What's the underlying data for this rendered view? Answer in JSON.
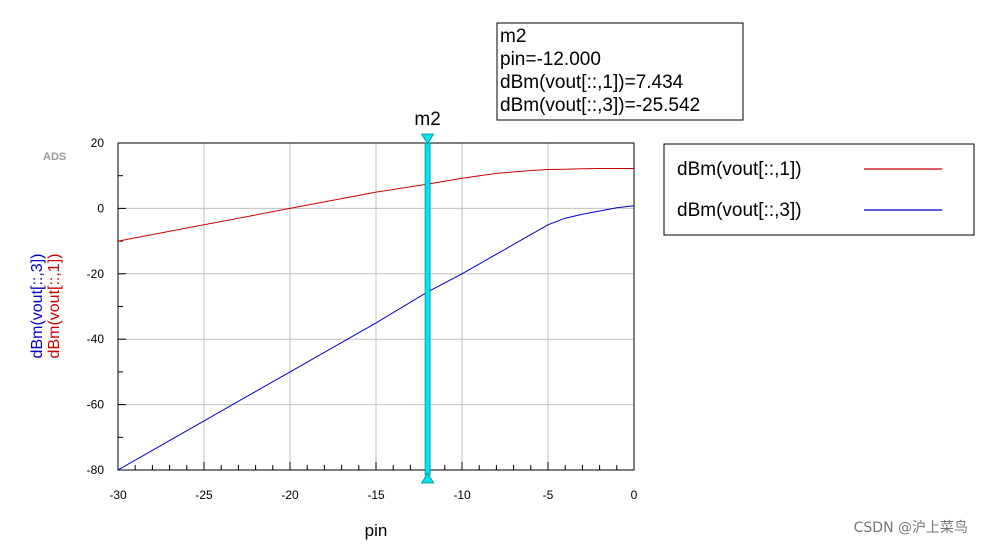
{
  "ads_logo": "ADS",
  "watermark": "CSDN @沪上菜鸟",
  "marker": {
    "name": "m2",
    "lines": [
      "m2",
      "pin=-12.000",
      "dBm(vout[::,1])=7.434",
      "dBm(vout[::,3])=-25.542"
    ],
    "x": -12.0,
    "color": "#00e5ee"
  },
  "legend": {
    "placement": "right",
    "entries": [
      {
        "label": "dBm(vout[::,1])",
        "color": "#cc0000"
      },
      {
        "label": "dBm(vout[::,3])",
        "color": "#0000cc"
      }
    ]
  },
  "chart_data": {
    "type": "line",
    "xlabel": "pin",
    "ylabel_parts": [
      {
        "text": "dBm(vout[::,3])",
        "color": "#0000cc"
      },
      {
        "text": "dBm(vout[::,1])",
        "color": "#cc0000"
      }
    ],
    "xlim": [
      -30,
      0
    ],
    "ylim": [
      -80,
      20
    ],
    "xticks": [
      -30,
      -25,
      -20,
      -15,
      -10,
      -5,
      0
    ],
    "yticks": [
      20,
      0,
      -20,
      -40,
      -60,
      -80
    ],
    "grid": true,
    "series": [
      {
        "name": "dBm(vout[::,1])",
        "color": "#cc0000",
        "x": [
          -30,
          -25,
          -20,
          -15,
          -12,
          -10,
          -8,
          -6,
          -5,
          -4,
          -3,
          -2,
          -1,
          0
        ],
        "y": [
          -10,
          -5,
          0,
          5,
          7.434,
          9.2,
          10.7,
          11.6,
          11.9,
          12.0,
          12.1,
          12.2,
          12.2,
          12.2
        ]
      },
      {
        "name": "dBm(vout[::,3])",
        "color": "#0000cc",
        "x": [
          -30,
          -25,
          -20,
          -15,
          -12,
          -10,
          -8,
          -6,
          -5,
          -4,
          -3,
          -2,
          -1,
          0
        ],
        "y": [
          -80,
          -65,
          -50,
          -35,
          -25.542,
          -20,
          -14,
          -8,
          -5,
          -3,
          -1.8,
          -0.8,
          0.2,
          0.8
        ]
      }
    ]
  }
}
